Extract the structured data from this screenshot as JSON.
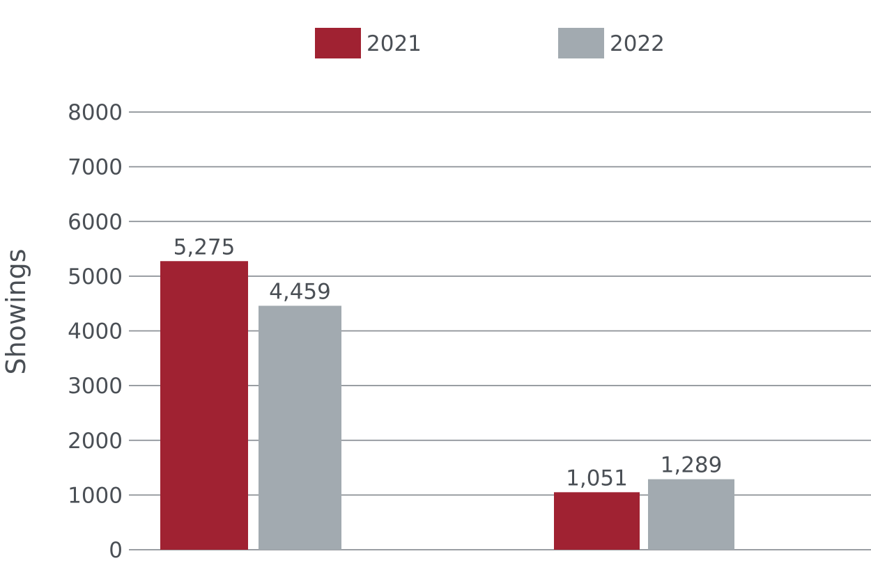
{
  "chart_data": {
    "type": "bar",
    "title": "",
    "xlabel": "",
    "ylabel": "Showings",
    "ylim": [
      0,
      8000
    ],
    "yticks": [
      "0",
      "1000",
      "2000",
      "3000",
      "4000",
      "5000",
      "6000",
      "7000",
      "8000"
    ],
    "categories": [
      "",
      ""
    ],
    "series": [
      {
        "name": "2021",
        "color": "#a02232",
        "values": [
          5275,
          1051
        ],
        "labels": [
          "5,275",
          "1,051"
        ]
      },
      {
        "name": "2022",
        "color": "#a2aab0",
        "values": [
          4459,
          1289
        ],
        "labels": [
          "4,459",
          "1,289"
        ]
      }
    ],
    "grid": true,
    "legend": "top-center"
  }
}
